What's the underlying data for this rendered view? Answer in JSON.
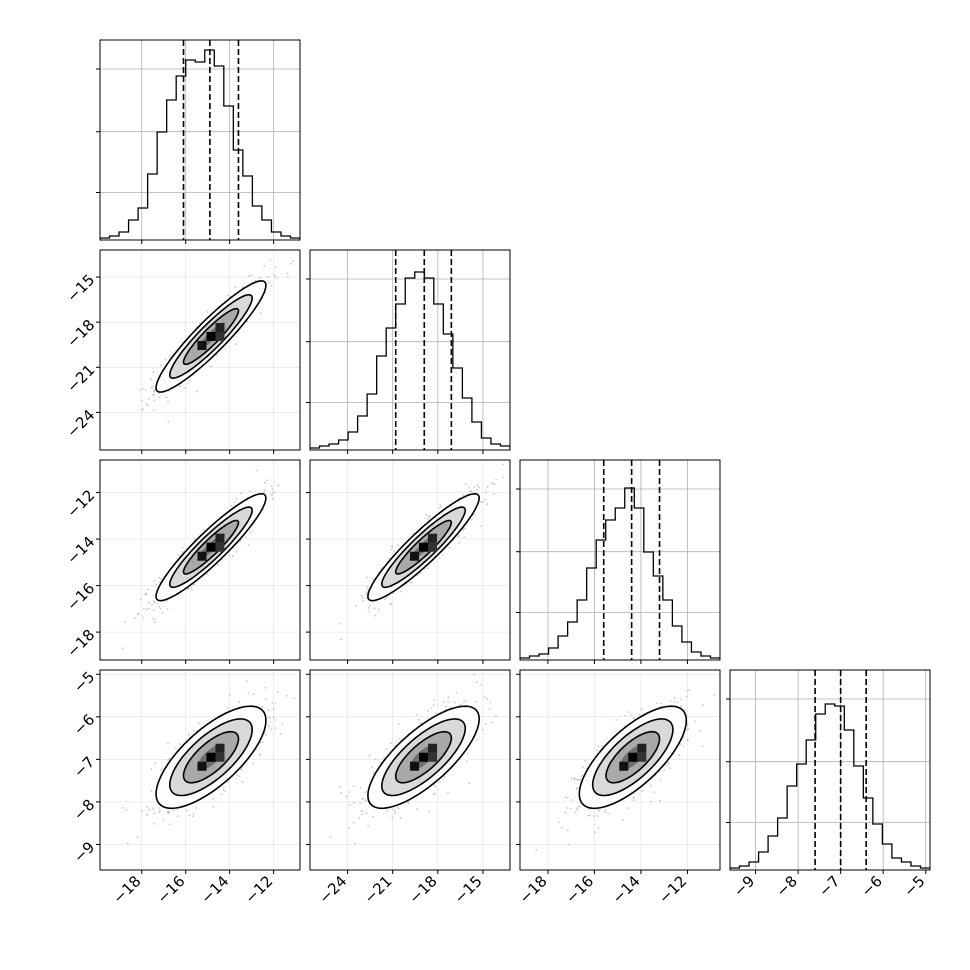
{
  "chart_data": {
    "type": "corner",
    "title": "",
    "grid": true,
    "colors": {
      "line": "#000000",
      "grid": "#b0b0b0",
      "samples": "#9a9a9a"
    },
    "params": [
      {
        "index": 0,
        "range": [
          -19.9,
          -10.8
        ],
        "ticks": [
          -18,
          -16,
          -14,
          -12
        ],
        "tick_labels": [
          "−18",
          "−16",
          "−14",
          "−12"
        ],
        "quantiles": [
          -16.1,
          -14.9,
          -13.6
        ],
        "mean": -14.85,
        "sd": 1.25,
        "hist": [
          0.01,
          0.02,
          0.04,
          0.1,
          0.16,
          0.33,
          0.54,
          0.7,
          0.82,
          0.9,
          0.89,
          0.95,
          0.87,
          0.67,
          0.45,
          0.32,
          0.17,
          0.1,
          0.04,
          0.02,
          0.01
        ]
      },
      {
        "index": 1,
        "range": [
          -26.5,
          -13.2
        ],
        "ticks": [
          -24,
          -21,
          -18,
          -15
        ],
        "tick_labels": [
          "−24",
          "−21",
          "−18",
          "−15"
        ],
        "quantiles": [
          -20.8,
          -18.9,
          -17.1
        ],
        "mean": -18.95,
        "sd": 1.85,
        "hist": [
          0.01,
          0.02,
          0.03,
          0.05,
          0.09,
          0.17,
          0.28,
          0.47,
          0.61,
          0.73,
          0.86,
          0.89,
          0.86,
          0.73,
          0.58,
          0.41,
          0.26,
          0.14,
          0.06,
          0.03,
          0.02
        ]
      },
      {
        "index": 2,
        "range": [
          -19.2,
          -10.6
        ],
        "ticks": [
          -18,
          -16,
          -14,
          -12
        ],
        "tick_labels": [
          "−18",
          "−16",
          "−14",
          "−12"
        ],
        "quantiles": [
          -15.6,
          -14.4,
          -13.2
        ],
        "mean": -14.35,
        "sd": 1.15,
        "hist": [
          0.01,
          0.02,
          0.03,
          0.06,
          0.12,
          0.19,
          0.3,
          0.46,
          0.6,
          0.7,
          0.76,
          0.86,
          0.76,
          0.54,
          0.42,
          0.3,
          0.17,
          0.09,
          0.04,
          0.02,
          0.01
        ]
      },
      {
        "index": 3,
        "range": [
          -9.6,
          -4.9
        ],
        "ticks": [
          -9,
          -8,
          -7,
          -6,
          -5
        ],
        "tick_labels": [
          "−9",
          "−8",
          "−7",
          "−6",
          "−5"
        ],
        "quantiles": [
          -7.6,
          -7.0,
          -6.4
        ],
        "mean": -6.95,
        "sd": 0.6,
        "hist": [
          0.01,
          0.02,
          0.04,
          0.09,
          0.17,
          0.26,
          0.42,
          0.53,
          0.65,
          0.78,
          0.83,
          0.82,
          0.7,
          0.52,
          0.36,
          0.23,
          0.13,
          0.06,
          0.04,
          0.02,
          0.01
        ]
      }
    ],
    "correlations": [
      {
        "i": 0,
        "j": 1,
        "r": 0.92
      },
      {
        "i": 0,
        "j": 2,
        "r": 0.92
      },
      {
        "i": 0,
        "j": 3,
        "r": 0.72
      },
      {
        "i": 1,
        "j": 2,
        "r": 0.92
      },
      {
        "i": 1,
        "j": 3,
        "r": 0.75
      },
      {
        "i": 2,
        "j": 3,
        "r": 0.72
      }
    ],
    "contour_levels_sigma": [
      0.5,
      1.0,
      1.5,
      2.0
    ],
    "contour_fill_grays": [
      "#d9d9d9",
      "#a9a9a9",
      "#6e6e6e",
      "#3a3a3a"
    ],
    "hist_ylim": [
      0,
      1
    ]
  }
}
